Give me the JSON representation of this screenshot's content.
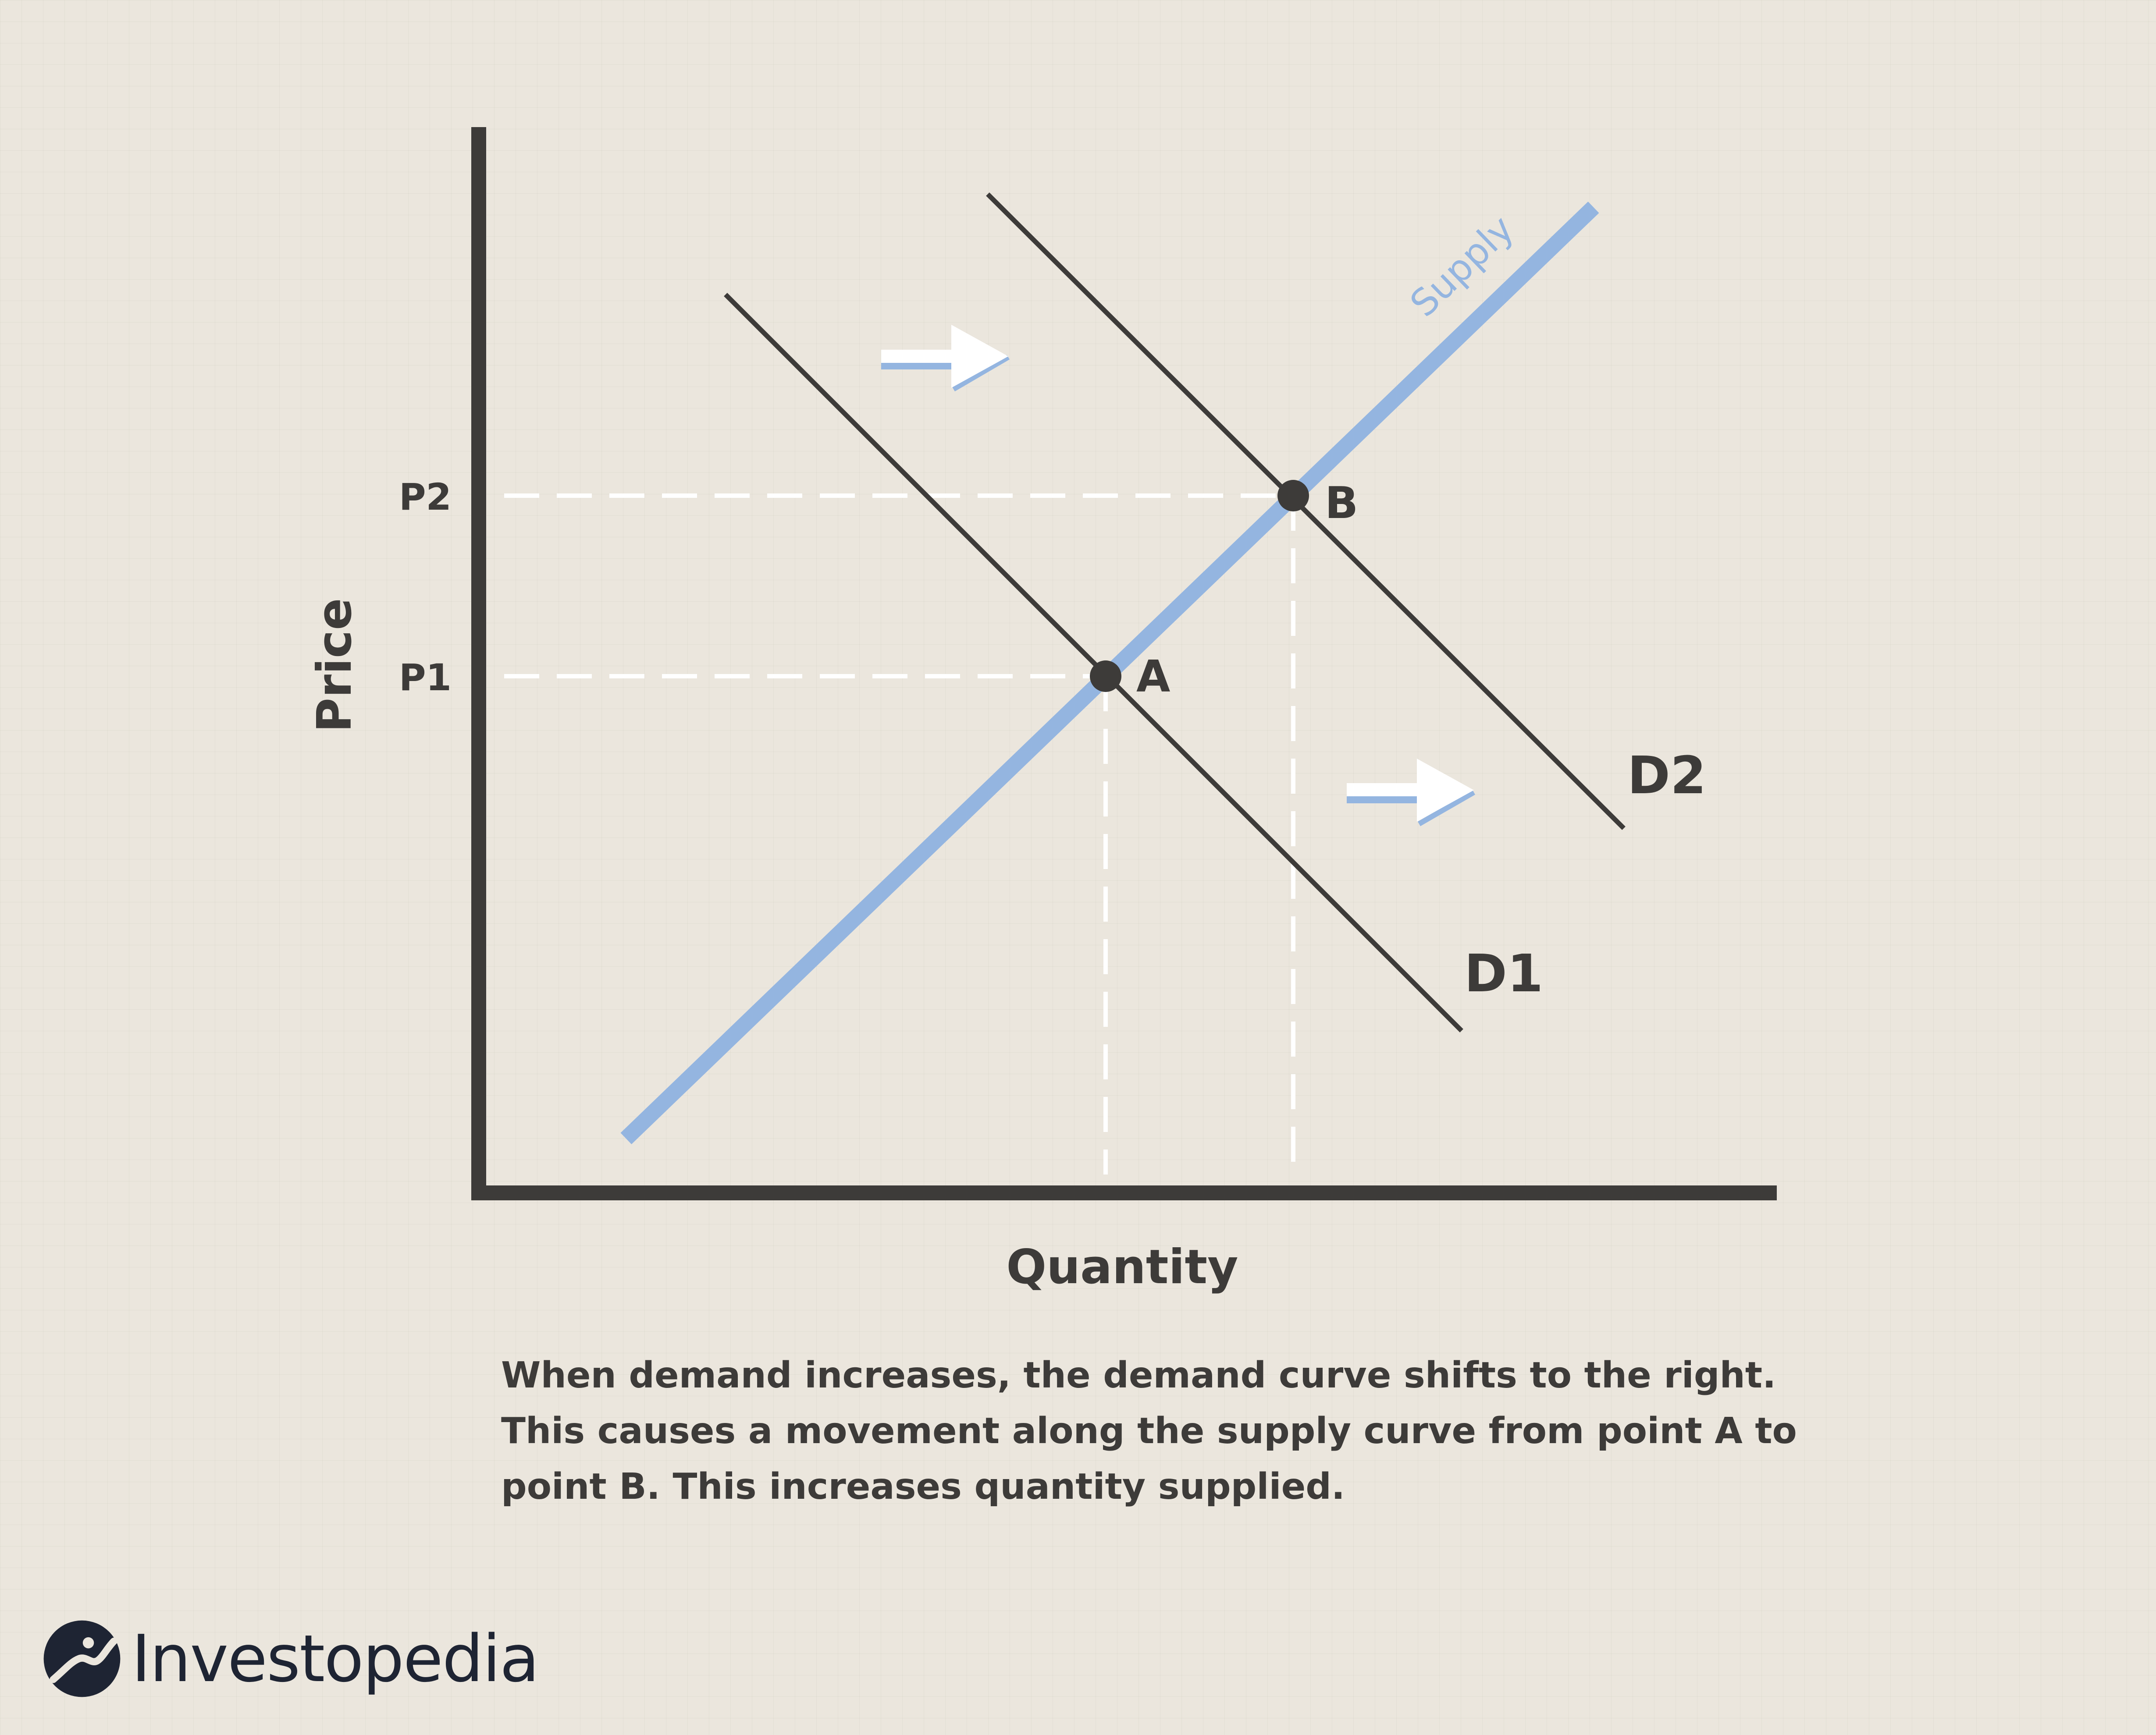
{
  "axes": {
    "x_label": "Quantity",
    "y_label": "Price"
  },
  "price_levels": [
    "P1",
    "P2"
  ],
  "curves": {
    "supply": "Supply",
    "demand_initial": "D1",
    "demand_shifted": "D2"
  },
  "points": [
    "A",
    "B"
  ],
  "caption": [
    "When demand increases, the demand curve shifts to the right.",
    "This causes a movement along the supply curve from point A to",
    "point B. This increases quantity supplied."
  ],
  "brand": "Investopedia",
  "colors": {
    "supply": "#94b5e0",
    "ink": "#3d3b39",
    "background": "#ebe6dd",
    "brand": "#1e2433"
  },
  "icons": {
    "shift_arrow": "right-arrow-icon",
    "logo": "investopedia-logo-icon"
  }
}
